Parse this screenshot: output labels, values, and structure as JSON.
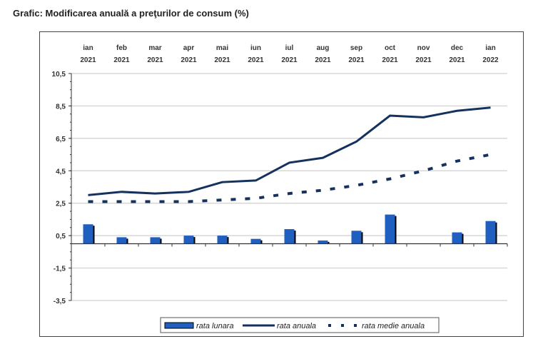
{
  "title": "Grafic: Modificarea anuală a preţurilor de consum (%)",
  "chart_data": {
    "type": "bar+line",
    "title": "Grafic: Modificarea anuală a preţurilor de consum (%)",
    "categories": [
      [
        "ian",
        "2021"
      ],
      [
        "feb",
        "2021"
      ],
      [
        "mar",
        "2021"
      ],
      [
        "apr",
        "2021"
      ],
      [
        "mai",
        "2021"
      ],
      [
        "iun",
        "2021"
      ],
      [
        "iul",
        "2021"
      ],
      [
        "aug",
        "2021"
      ],
      [
        "sep",
        "2021"
      ],
      [
        "oct",
        "2021"
      ],
      [
        "nov",
        "2021"
      ],
      [
        "dec",
        "2021"
      ],
      [
        "ian",
        "2022"
      ]
    ],
    "yticks": [
      "10,5",
      "8,5",
      "6,5",
      "4,5",
      "2,5",
      "0,5",
      "-1,5",
      "-3,5"
    ],
    "ytick_values": [
      10.5,
      8.5,
      6.5,
      4.5,
      2.5,
      0.5,
      -1.5,
      -3.5
    ],
    "ylim": [
      -3.5,
      10.5
    ],
    "grid": true,
    "x_axis_position": "top",
    "legend_placement": "bottom",
    "series": [
      {
        "name": "rata lunara",
        "type": "bar",
        "color": "#1f5fbf",
        "values": [
          1.2,
          0.4,
          0.4,
          0.5,
          0.5,
          0.3,
          0.9,
          0.2,
          0.8,
          1.8,
          0.0,
          0.7,
          1.4
        ]
      },
      {
        "name": "rata anuala",
        "type": "line",
        "color": "#15325e",
        "values": [
          3.0,
          3.2,
          3.1,
          3.2,
          3.8,
          3.9,
          5.0,
          5.3,
          6.3,
          7.9,
          7.8,
          8.2,
          8.4
        ]
      },
      {
        "name": "rata medie anuala",
        "type": "dashed-line",
        "color": "#15325e",
        "values": [
          2.6,
          2.6,
          2.6,
          2.6,
          2.7,
          2.8,
          3.1,
          3.3,
          3.6,
          4.0,
          4.5,
          5.1,
          5.5
        ]
      }
    ]
  }
}
